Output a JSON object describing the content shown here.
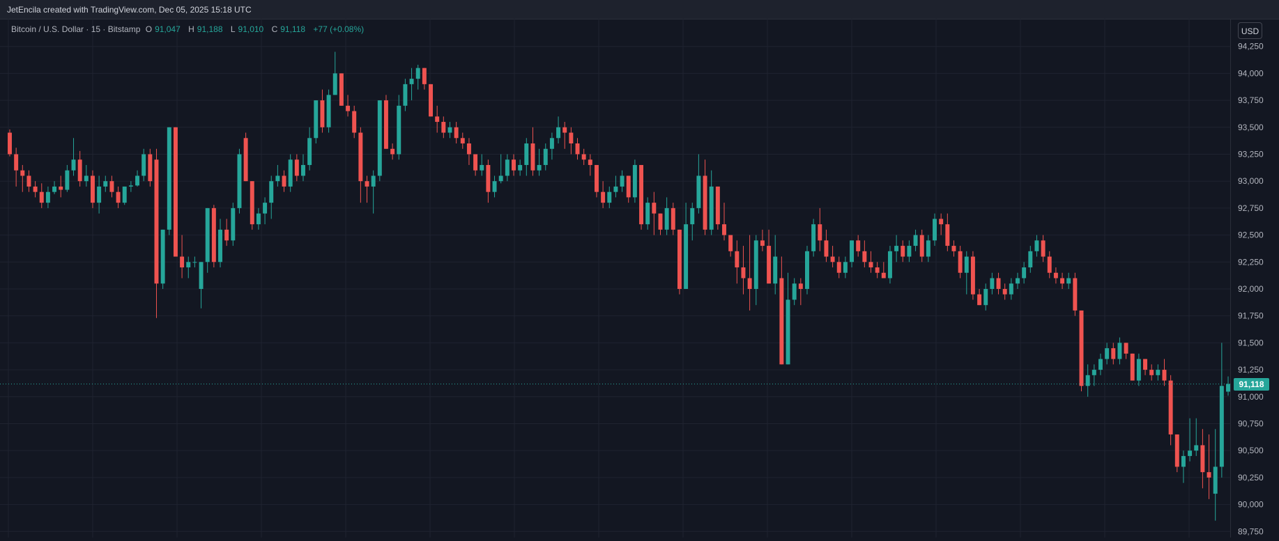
{
  "header": {
    "credit": "JetEncila created with TradingView.com, Dec 05, 2025 15:18 UTC"
  },
  "legend": {
    "symbol": "Bitcoin / U.S. Dollar · 15 · Bitstamp",
    "open_label": "O",
    "open": "91,047",
    "high_label": "H",
    "high": "91,188",
    "low_label": "L",
    "low": "91,010",
    "close_label": "C",
    "close": "91,118",
    "change": "+77 (+0.08%)"
  },
  "currency_button": "USD",
  "last_price_label": "91,118",
  "colors": {
    "up": "#26a69a",
    "down": "#ef5350",
    "background": "#131722",
    "grid": "#1f2330"
  },
  "chart_data": {
    "type": "candlestick",
    "title": "Bitcoin / U.S. Dollar · 15 · Bitstamp",
    "currency": "USD",
    "ylim": [
      89700,
      94500
    ],
    "y_ticks": [
      89750,
      90000,
      90250,
      90500,
      90750,
      91000,
      91250,
      91500,
      91750,
      92000,
      92250,
      92500,
      92750,
      93000,
      93250,
      93500,
      93750,
      94000,
      94250
    ],
    "y_tick_labels": [
      "89,750",
      "90,000",
      "90,250",
      "90,500",
      "90,750",
      "91,000",
      "91,250",
      "91,500",
      "91,750",
      "92,000",
      "92,250",
      "92,500",
      "92,750",
      "93,000",
      "93,250",
      "93,500",
      "93,750",
      "94,000",
      "94,250"
    ],
    "last_price": 91118,
    "grid": true,
    "candles": [
      [
        93450,
        93480,
        93230,
        93250
      ],
      [
        93250,
        93310,
        92950,
        93100
      ],
      [
        93100,
        93150,
        92900,
        93050
      ],
      [
        93050,
        93100,
        92900,
        92950
      ],
      [
        92950,
        93000,
        92850,
        92900
      ],
      [
        92900,
        92980,
        92750,
        92800
      ],
      [
        92800,
        92950,
        92750,
        92900
      ],
      [
        92900,
        93000,
        92880,
        92950
      ],
      [
        92950,
        93050,
        92850,
        92920
      ],
      [
        92920,
        93150,
        92900,
        93100
      ],
      [
        93100,
        93400,
        93050,
        93200
      ],
      [
        93200,
        93280,
        92950,
        93000
      ],
      [
        93000,
        93150,
        92950,
        93050
      ],
      [
        93050,
        93100,
        92750,
        92800
      ],
      [
        92800,
        93050,
        92700,
        92950
      ],
      [
        92950,
        93050,
        92900,
        93000
      ],
      [
        93000,
        93050,
        92850,
        92900
      ],
      [
        92900,
        92950,
        92750,
        92800
      ],
      [
        92800,
        92950,
        92780,
        92950
      ],
      [
        92950,
        93000,
        92900,
        92960
      ],
      [
        92960,
        93100,
        92950,
        93050
      ],
      [
        93050,
        93300,
        93000,
        93250
      ],
      [
        93250,
        93300,
        92950,
        93000
      ],
      [
        93200,
        93300,
        91730,
        92050
      ],
      [
        92050,
        92550,
        92000,
        92550
      ],
      [
        92550,
        93500,
        92500,
        93500
      ],
      [
        93500,
        93500,
        92300,
        92300
      ],
      [
        92300,
        92500,
        92100,
        92200
      ],
      [
        92200,
        92300,
        92100,
        92250
      ],
      [
        92250,
        92300,
        92200,
        92250
      ],
      [
        92000,
        92250,
        91820,
        92250
      ],
      [
        92250,
        92750,
        92150,
        92750
      ],
      [
        92750,
        92780,
        92200,
        92250
      ],
      [
        92250,
        92650,
        92200,
        92550
      ],
      [
        92550,
        92650,
        92400,
        92450
      ],
      [
        92450,
        92800,
        92400,
        92750
      ],
      [
        92750,
        93300,
        92700,
        93250
      ],
      [
        93400,
        93450,
        93000,
        93000
      ],
      [
        93000,
        93000,
        92550,
        92600
      ],
      [
        92600,
        92750,
        92550,
        92700
      ],
      [
        92700,
        92850,
        92600,
        92800
      ],
      [
        92800,
        93050,
        92650,
        93000
      ],
      [
        93000,
        93150,
        92950,
        93050
      ],
      [
        93050,
        93100,
        92900,
        92950
      ],
      [
        92950,
        93250,
        92900,
        93200
      ],
      [
        93200,
        93250,
        93000,
        93050
      ],
      [
        93050,
        93250,
        93000,
        93150
      ],
      [
        93150,
        93500,
        93100,
        93400
      ],
      [
        93400,
        93750,
        93350,
        93750
      ],
      [
        93750,
        93850,
        93450,
        93500
      ],
      [
        93500,
        93850,
        93450,
        93800
      ],
      [
        93800,
        94200,
        93800,
        94000
      ],
      [
        94000,
        94000,
        93700,
        93700
      ],
      [
        93700,
        93800,
        93600,
        93650
      ],
      [
        93650,
        93700,
        93400,
        93450
      ],
      [
        93450,
        93500,
        92800,
        93000
      ],
      [
        93000,
        93050,
        92800,
        92950
      ],
      [
        92950,
        93100,
        92700,
        93050
      ],
      [
        93050,
        93750,
        93000,
        93750
      ],
      [
        93750,
        93800,
        93300,
        93300
      ],
      [
        93300,
        93350,
        93200,
        93250
      ],
      [
        93250,
        93800,
        93200,
        93700
      ],
      [
        93700,
        93950,
        93650,
        93900
      ],
      [
        93900,
        94050,
        93750,
        93950
      ],
      [
        93950,
        94080,
        93850,
        94050
      ],
      [
        94050,
        94050,
        93850,
        93900
      ],
      [
        93900,
        93900,
        93600,
        93600
      ],
      [
        93600,
        93700,
        93450,
        93550
      ],
      [
        93550,
        93600,
        93400,
        93450
      ],
      [
        93450,
        93550,
        93400,
        93500
      ],
      [
        93500,
        93550,
        93350,
        93400
      ],
      [
        93400,
        93450,
        93300,
        93350
      ],
      [
        93350,
        93400,
        93150,
        93250
      ],
      [
        93250,
        93250,
        93050,
        93100
      ],
      [
        93100,
        93250,
        93050,
        93150
      ],
      [
        93150,
        93200,
        92800,
        92900
      ],
      [
        92900,
        93050,
        92850,
        93000
      ],
      [
        93000,
        93250,
        92980,
        93050
      ],
      [
        93050,
        93250,
        93000,
        93200
      ],
      [
        93200,
        93250,
        93050,
        93100
      ],
      [
        93100,
        93200,
        93050,
        93150
      ],
      [
        93150,
        93400,
        93050,
        93350
      ],
      [
        93350,
        93500,
        93050,
        93100
      ],
      [
        93100,
        93300,
        93050,
        93150
      ],
      [
        93150,
        93350,
        93100,
        93300
      ],
      [
        93300,
        93450,
        93200,
        93400
      ],
      [
        93400,
        93600,
        93350,
        93500
      ],
      [
        93500,
        93550,
        93300,
        93450
      ],
      [
        93450,
        93500,
        93250,
        93350
      ],
      [
        93350,
        93400,
        93200,
        93250
      ],
      [
        93250,
        93300,
        93150,
        93200
      ],
      [
        93200,
        93250,
        93050,
        93150
      ],
      [
        93150,
        93150,
        92850,
        92900
      ],
      [
        92900,
        93000,
        92750,
        92800
      ],
      [
        92800,
        92950,
        92750,
        92900
      ],
      [
        92900,
        93050,
        92850,
        92950
      ],
      [
        92950,
        93100,
        92900,
        93050
      ],
      [
        93050,
        93050,
        92800,
        92850
      ],
      [
        92850,
        93200,
        92800,
        93150
      ],
      [
        93150,
        93150,
        92550,
        92600
      ],
      [
        92600,
        92850,
        92550,
        92800
      ],
      [
        92800,
        92900,
        92500,
        92700
      ],
      [
        92700,
        92700,
        92500,
        92550
      ],
      [
        92550,
        92850,
        92500,
        92750
      ],
      [
        92750,
        92800,
        92500,
        92550
      ],
      [
        92550,
        92550,
        91950,
        92000
      ],
      [
        92000,
        92800,
        92000,
        92600
      ],
      [
        92600,
        92800,
        92450,
        92750
      ],
      [
        92750,
        93250,
        92700,
        93050
      ],
      [
        93050,
        93200,
        92500,
        92550
      ],
      [
        92550,
        93100,
        92500,
        92950
      ],
      [
        92950,
        92950,
        92550,
        92600
      ],
      [
        92600,
        92800,
        92450,
        92500
      ],
      [
        92500,
        92500,
        92300,
        92350
      ],
      [
        92350,
        92450,
        92050,
        92200
      ],
      [
        92200,
        92400,
        91950,
        92100
      ],
      [
        92100,
        92500,
        91800,
        92000
      ],
      [
        92000,
        92500,
        91850,
        92450
      ],
      [
        92450,
        92550,
        92350,
        92400
      ],
      [
        92400,
        92550,
        92050,
        92050
      ],
      [
        92050,
        92500,
        91950,
        92300
      ],
      [
        92100,
        92300,
        91300,
        91300
      ],
      [
        91300,
        92150,
        91300,
        91900
      ],
      [
        91900,
        92100,
        91850,
        92050
      ],
      [
        92050,
        92100,
        91850,
        92000
      ],
      [
        92000,
        92400,
        91950,
        92350
      ],
      [
        92350,
        92650,
        92300,
        92600
      ],
      [
        92600,
        92750,
        92350,
        92450
      ],
      [
        92450,
        92550,
        92250,
        92300
      ],
      [
        92300,
        92400,
        92200,
        92250
      ],
      [
        92250,
        92300,
        92100,
        92150
      ],
      [
        92150,
        92300,
        92100,
        92250
      ],
      [
        92250,
        92450,
        92200,
        92450
      ],
      [
        92450,
        92500,
        92300,
        92350
      ],
      [
        92350,
        92450,
        92200,
        92250
      ],
      [
        92250,
        92350,
        92150,
        92200
      ],
      [
        92200,
        92250,
        92100,
        92150
      ],
      [
        92150,
        92250,
        92100,
        92100
      ],
      [
        92100,
        92400,
        92050,
        92350
      ],
      [
        92350,
        92500,
        92250,
        92400
      ],
      [
        92400,
        92450,
        92250,
        92300
      ],
      [
        92300,
        92450,
        92250,
        92400
      ],
      [
        92400,
        92550,
        92350,
        92500
      ],
      [
        92500,
        92550,
        92250,
        92300
      ],
      [
        92300,
        92500,
        92250,
        92450
      ],
      [
        92450,
        92700,
        92400,
        92650
      ],
      [
        92650,
        92700,
        92500,
        92600
      ],
      [
        92600,
        92700,
        92350,
        92400
      ],
      [
        92400,
        92450,
        92300,
        92350
      ],
      [
        92350,
        92400,
        92100,
        92150
      ],
      [
        92150,
        92350,
        91950,
        92300
      ],
      [
        92300,
        92350,
        91900,
        91950
      ],
      [
        91950,
        92000,
        91850,
        91850
      ],
      [
        91850,
        92050,
        91800,
        92000
      ],
      [
        92000,
        92150,
        91950,
        92100
      ],
      [
        92100,
        92150,
        91950,
        92000
      ],
      [
        92000,
        92050,
        91900,
        91950
      ],
      [
        91950,
        92100,
        91900,
        92050
      ],
      [
        92050,
        92150,
        92000,
        92100
      ],
      [
        92100,
        92250,
        92050,
        92200
      ],
      [
        92200,
        92400,
        92150,
        92350
      ],
      [
        92350,
        92500,
        92300,
        92450
      ],
      [
        92450,
        92500,
        92250,
        92300
      ],
      [
        92300,
        92350,
        92100,
        92150
      ],
      [
        92150,
        92200,
        92050,
        92100
      ],
      [
        92100,
        92150,
        92000,
        92050
      ],
      [
        92050,
        92150,
        92000,
        92100
      ],
      [
        92100,
        92150,
        91750,
        91800
      ],
      [
        91800,
        91800,
        91050,
        91100
      ],
      [
        91100,
        91300,
        91000,
        91200
      ],
      [
        91200,
        91300,
        91100,
        91250
      ],
      [
        91250,
        91400,
        91200,
        91350
      ],
      [
        91350,
        91500,
        91300,
        91450
      ],
      [
        91450,
        91500,
        91300,
        91350
      ],
      [
        91350,
        91550,
        91300,
        91500
      ],
      [
        91500,
        91500,
        91350,
        91400
      ],
      [
        91400,
        91400,
        91150,
        91150
      ],
      [
        91150,
        91400,
        91100,
        91350
      ],
      [
        91350,
        91350,
        91200,
        91250
      ],
      [
        91250,
        91300,
        91150,
        91200
      ],
      [
        91200,
        91300,
        91150,
        91250
      ],
      [
        91250,
        91350,
        91100,
        91150
      ],
      [
        91150,
        91200,
        90550,
        90650
      ],
      [
        90650,
        90650,
        90300,
        90350
      ],
      [
        90350,
        90500,
        90200,
        90450
      ],
      [
        90450,
        90800,
        90400,
        90500
      ],
      [
        90500,
        90800,
        90450,
        90550
      ],
      [
        90550,
        90700,
        90150,
        90300
      ],
      [
        90300,
        90650,
        90050,
        90250
      ],
      [
        90100,
        90700,
        89850,
        90350
      ],
      [
        90350,
        91500,
        90250,
        91100
      ],
      [
        91047,
        91188,
        91010,
        91118
      ]
    ]
  }
}
